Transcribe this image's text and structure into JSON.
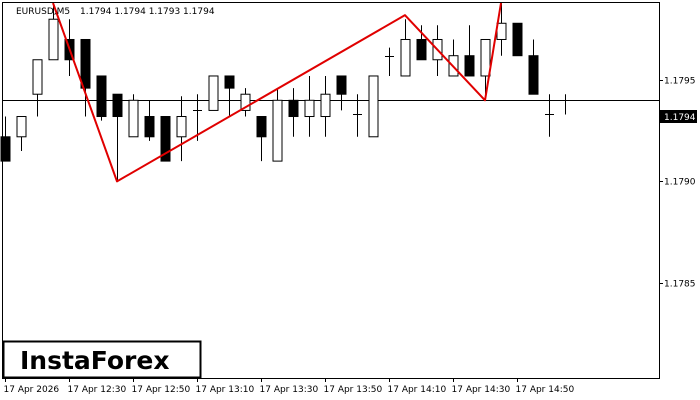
{
  "chart_data": {
    "type": "candlestick",
    "symbol_header": "EURUSD,M5",
    "ohlc_header": "1.1794 1.1794 1.1793 1.1794",
    "current_price_label": "1.1794",
    "current_price": 1.1794,
    "ylim": [
      1.17803,
      1.17988
    ],
    "y_ticks": [
      {
        "value": 1.1795,
        "label": "1.1795"
      },
      {
        "value": 1.179,
        "label": "1.1790"
      },
      {
        "value": 1.1785,
        "label": "1.1785"
      }
    ],
    "x_tick_labels": [
      "17 Apr 2026",
      "17 Apr 12:30",
      "17 Apr 12:50",
      "17 Apr 13:10",
      "17 Apr 13:30",
      "17 Apr 13:50",
      "17 Apr 14:10",
      "17 Apr 14:30",
      "17 Apr 14:50"
    ],
    "x_tick_index": [
      0,
      4,
      8,
      12,
      16,
      20,
      24,
      28,
      32
    ],
    "candles": [
      {
        "o": 1.17922,
        "h": 1.17932,
        "l": 1.1791,
        "c": 1.1791
      },
      {
        "o": 1.17922,
        "h": 1.17932,
        "l": 1.17915,
        "c": 1.17932
      },
      {
        "o": 1.17943,
        "h": 1.1796,
        "l": 1.17932,
        "c": 1.1796
      },
      {
        "o": 1.1796,
        "h": 1.17988,
        "l": 1.1796,
        "c": 1.1798
      },
      {
        "o": 1.1797,
        "h": 1.1798,
        "l": 1.17952,
        "c": 1.1796
      },
      {
        "o": 1.1797,
        "h": 1.1797,
        "l": 1.17932,
        "c": 1.17946
      },
      {
        "o": 1.17952,
        "h": 1.17952,
        "l": 1.1793,
        "c": 1.17932
      },
      {
        "o": 1.17943,
        "h": 1.17943,
        "l": 1.179,
        "c": 1.17932
      },
      {
        "o": 1.17922,
        "h": 1.17943,
        "l": 1.17922,
        "c": 1.1794
      },
      {
        "o": 1.17932,
        "h": 1.1794,
        "l": 1.1792,
        "c": 1.17922
      },
      {
        "o": 1.17932,
        "h": 1.17932,
        "l": 1.1791,
        "c": 1.1791
      },
      {
        "o": 1.17922,
        "h": 1.17942,
        "l": 1.1791,
        "c": 1.17932
      },
      {
        "o": 1.17935,
        "h": 1.17943,
        "l": 1.1792,
        "c": 1.17935
      },
      {
        "o": 1.17935,
        "h": 1.17952,
        "l": 1.17935,
        "c": 1.17952
      },
      {
        "o": 1.17952,
        "h": 1.17952,
        "l": 1.17932,
        "c": 1.17946
      },
      {
        "o": 1.17935,
        "h": 1.17946,
        "l": 1.17932,
        "c": 1.17943
      },
      {
        "o": 1.17932,
        "h": 1.17932,
        "l": 1.1791,
        "c": 1.17922
      },
      {
        "o": 1.1791,
        "h": 1.17946,
        "l": 1.1791,
        "c": 1.1794
      },
      {
        "o": 1.1794,
        "h": 1.17946,
        "l": 1.17922,
        "c": 1.17932
      },
      {
        "o": 1.17932,
        "h": 1.17952,
        "l": 1.17922,
        "c": 1.1794
      },
      {
        "o": 1.17932,
        "h": 1.17952,
        "l": 1.17922,
        "c": 1.17943
      },
      {
        "o": 1.17952,
        "h": 1.17952,
        "l": 1.17935,
        "c": 1.17943
      },
      {
        "o": 1.17933,
        "h": 1.17943,
        "l": 1.17922,
        "c": 1.17933
      },
      {
        "o": 1.17922,
        "h": 1.17952,
        "l": 1.17922,
        "c": 1.17952
      },
      {
        "o": 1.17962,
        "h": 1.17966,
        "l": 1.17952,
        "c": 1.17962
      },
      {
        "o": 1.17952,
        "h": 1.1798,
        "l": 1.17952,
        "c": 1.1797
      },
      {
        "o": 1.1797,
        "h": 1.17977,
        "l": 1.1796,
        "c": 1.1796
      },
      {
        "o": 1.1796,
        "h": 1.17977,
        "l": 1.17952,
        "c": 1.1797
      },
      {
        "o": 1.17952,
        "h": 1.1797,
        "l": 1.17952,
        "c": 1.17962
      },
      {
        "o": 1.17962,
        "h": 1.17977,
        "l": 1.17952,
        "c": 1.17952
      },
      {
        "o": 1.17952,
        "h": 1.1797,
        "l": 1.17943,
        "c": 1.1797
      },
      {
        "o": 1.1797,
        "h": 1.17988,
        "l": 1.17962,
        "c": 1.17978
      },
      {
        "o": 1.17978,
        "h": 1.17978,
        "l": 1.17962,
        "c": 1.17962
      },
      {
        "o": 1.17962,
        "h": 1.1797,
        "l": 1.17943,
        "c": 1.17943
      },
      {
        "o": 1.17933,
        "h": 1.17943,
        "l": 1.17922,
        "c": 1.17933
      },
      {
        "o": 1.1794,
        "h": 1.17943,
        "l": 1.17933,
        "c": 1.1794
      }
    ],
    "pattern_line": [
      {
        "i": 3,
        "y": 1.17988
      },
      {
        "i": 7,
        "y": 1.179
      },
      {
        "i": 25,
        "y": 1.17982
      },
      {
        "i": 30,
        "y": 1.1794
      },
      {
        "i": 31,
        "y": 1.17988
      }
    ],
    "colors": {
      "bull_fill": "#ffffff",
      "bear_fill": "#000000",
      "pattern": "#e00000",
      "price_line": "#000000"
    }
  },
  "logo": {
    "text": "InstaForex"
  }
}
